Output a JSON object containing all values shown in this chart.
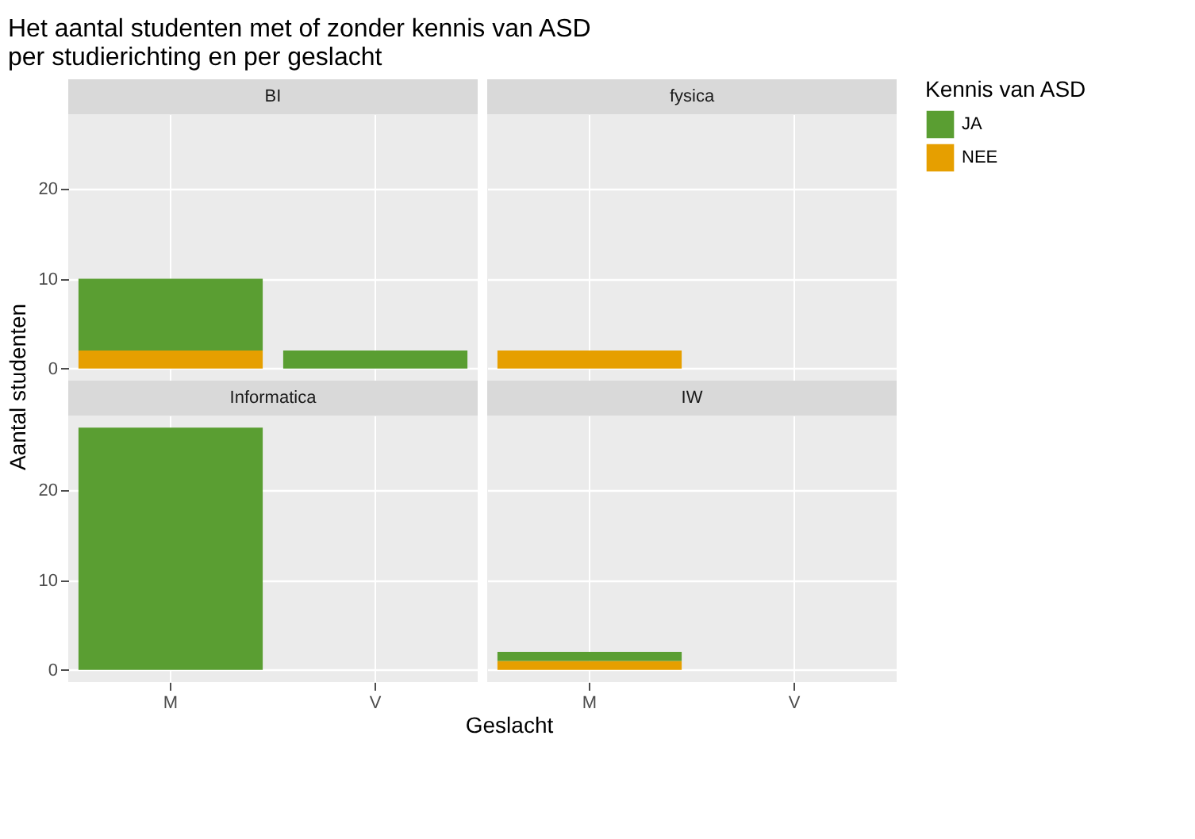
{
  "chart_data": [
    {
      "type": "bar",
      "title": "BI",
      "annotations": [
        "Het aantal studenten met of zonder kennis van ASD\nper studierichting en per geslacht"
      ],
      "xlabel": "Geslacht",
      "ylabel": "Aantal studenten",
      "legend_title": "Kennis van ASD",
      "legend": "right",
      "categories": [
        "M",
        "V"
      ],
      "stacked": true,
      "series": [
        {
          "name": "NEE",
          "color": "#e69f00",
          "values": [
            2,
            null
          ]
        },
        {
          "name": "JA",
          "color": "#5a9e32",
          "values": [
            8,
            2
          ]
        }
      ],
      "ylim": [
        -1.35,
        28.35
      ],
      "yticks": [
        0,
        10,
        20
      ],
      "grid": true,
      "tick_labels": "y"
    },
    {
      "type": "bar",
      "title": "fysica",
      "categories": [
        "M",
        "V"
      ],
      "stacked": true,
      "series": [
        {
          "name": "NEE",
          "color": "#e69f00",
          "values": [
            2,
            null
          ]
        },
        {
          "name": "JA",
          "color": "#5a9e32",
          "values": [
            null,
            null
          ]
        }
      ],
      "ylim": [
        -1.35,
        28.35
      ],
      "yticks": [
        0,
        10,
        20
      ],
      "grid": true,
      "tick_labels": false
    },
    {
      "type": "bar",
      "title": "Informatica",
      "categories": [
        "M",
        "V"
      ],
      "stacked": true,
      "series": [
        {
          "name": "NEE",
          "color": "#e69f00",
          "values": [
            null,
            null
          ]
        },
        {
          "name": "JA",
          "color": "#5a9e32",
          "values": [
            27,
            null
          ]
        }
      ],
      "ylim": [
        -1.35,
        28.35
      ],
      "yticks": [
        0,
        10,
        20
      ],
      "grid": true
    },
    {
      "type": "bar",
      "title": "IW",
      "categories": [
        "M",
        "V"
      ],
      "stacked": true,
      "series": [
        {
          "name": "NEE",
          "color": "#e69f00",
          "values": [
            1,
            null
          ]
        },
        {
          "name": "JA",
          "color": "#5a9e32",
          "values": [
            1,
            null
          ]
        }
      ],
      "ylim": [
        -1.35,
        28.35
      ],
      "yticks": [
        0,
        10,
        20
      ],
      "grid": true,
      "tick_labels": "x"
    }
  ]
}
